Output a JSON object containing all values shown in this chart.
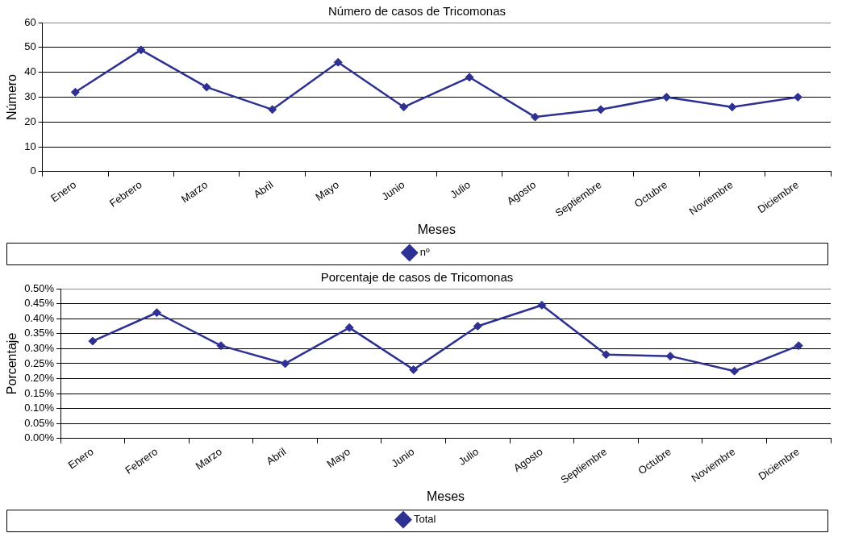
{
  "chart_data": [
    {
      "type": "line",
      "title": "Número de casos de Tricomonas",
      "xlabel": "Meses",
      "ylabel": "Número",
      "categories": [
        "Enero",
        "Febrero",
        "Marzo",
        "Abril",
        "Mayo",
        "Junio",
        "Julio",
        "Agosto",
        "Septiembre",
        "Octubre",
        "Noviembre",
        "Diciembre"
      ],
      "series": [
        {
          "name": "nº",
          "color": "#2e3192",
          "values": [
            32,
            49,
            34,
            25,
            44,
            26,
            38,
            22,
            25,
            30,
            26,
            30
          ]
        }
      ],
      "ylim": [
        0,
        60
      ],
      "yticks": [
        0,
        10,
        20,
        30,
        40,
        50,
        60
      ],
      "grid": "y",
      "legend": "bottom",
      "marker": "diamond",
      "line_style": "solid"
    },
    {
      "type": "line",
      "title": "Porcentaje de casos de Tricomonas",
      "xlabel": "Meses",
      "ylabel": "Porcentaje",
      "categories": [
        "Enero",
        "Febrero",
        "Marzo",
        "Abril",
        "Mayo",
        "Junio",
        "Julio",
        "Agosto",
        "Septiembre",
        "Octubre",
        "Noviembre",
        "Diciembre"
      ],
      "series": [
        {
          "name": "Total",
          "color": "#2e3192",
          "values": [
            0.325,
            0.42,
            0.31,
            0.25,
            0.37,
            0.23,
            0.375,
            0.445,
            0.28,
            0.275,
            0.225,
            0.31
          ]
        }
      ],
      "ylim": [
        0,
        0.5
      ],
      "yticks": [
        {
          "value": 0,
          "label": "0.00%"
        },
        {
          "value": 0.05,
          "label": "0.05%"
        },
        {
          "value": 0.1,
          "label": "0.10%"
        },
        {
          "value": 0.15,
          "label": "0.15%"
        },
        {
          "value": 0.2,
          "label": "0.20%"
        },
        {
          "value": 0.25,
          "label": "0.25%"
        },
        {
          "value": 0.3,
          "label": "0.30%"
        },
        {
          "value": 0.35,
          "label": "0.35%"
        },
        {
          "value": 0.4,
          "label": "0.40%"
        },
        {
          "value": 0.45,
          "label": "0.45%"
        },
        {
          "value": 0.5,
          "label": "0.50%"
        }
      ],
      "grid": "y",
      "legend": "bottom",
      "marker": "diamond",
      "line_style": "solid"
    }
  ]
}
